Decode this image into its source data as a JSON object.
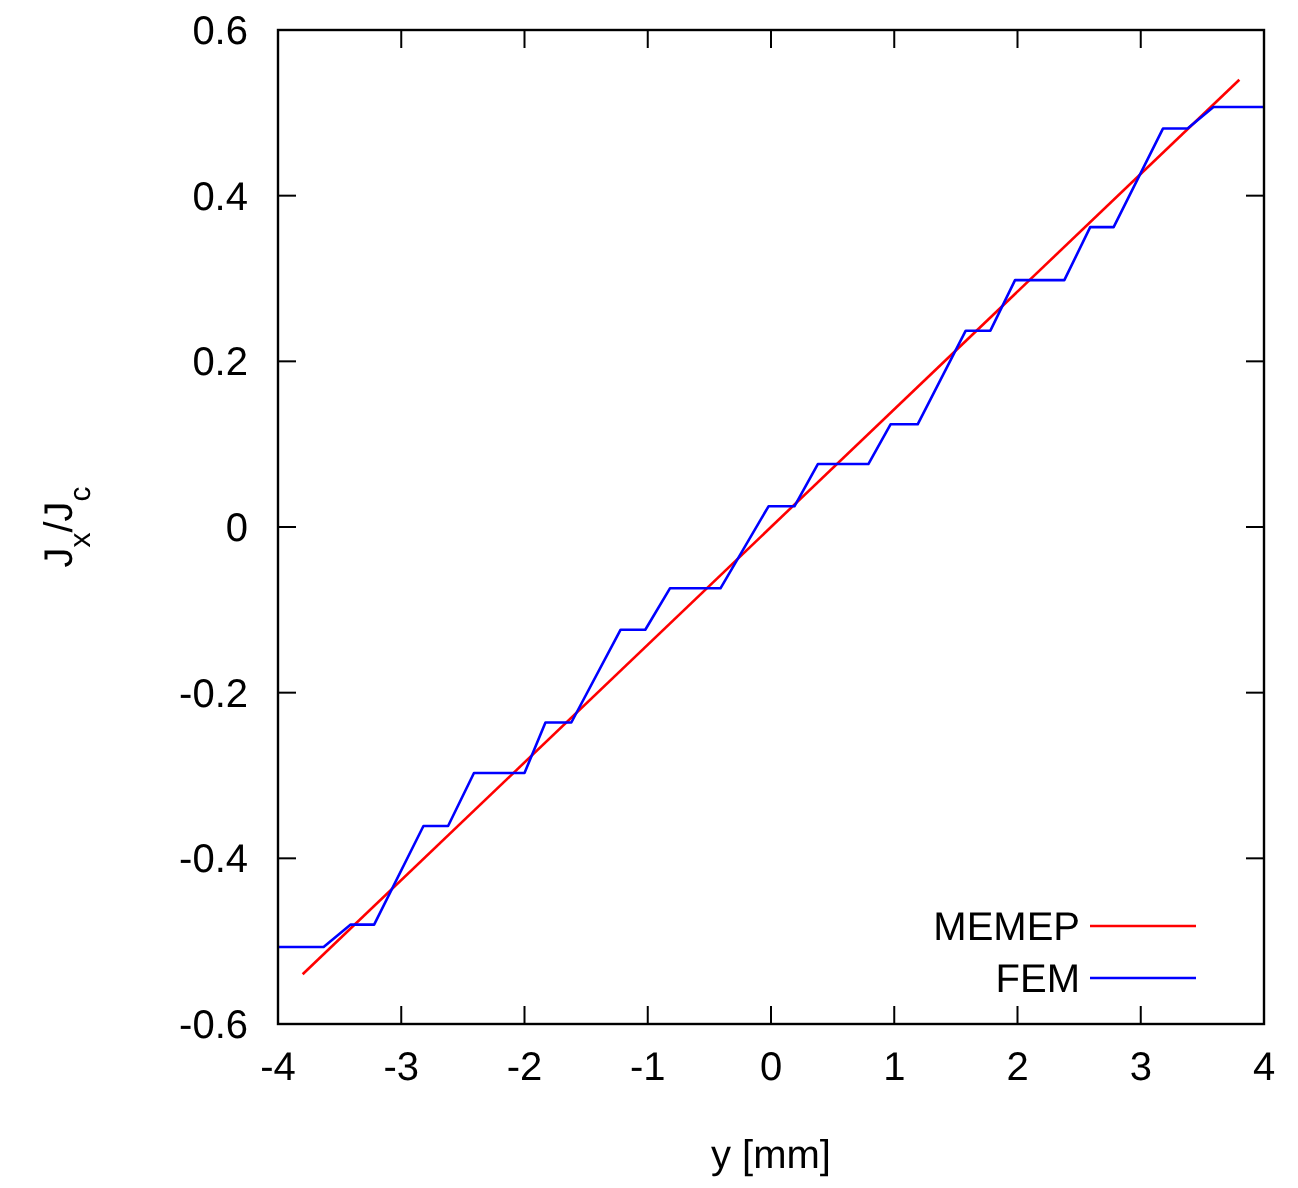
{
  "chart_data": {
    "type": "line",
    "xlabel": "y [mm]",
    "ylabel": "J$_{x}$/J$_{c}$",
    "xlim": [
      -4,
      4
    ],
    "ylim": [
      -0.6,
      0.6
    ],
    "xticks": [
      -4,
      -3,
      -2,
      -1,
      0,
      1,
      2,
      3,
      4
    ],
    "yticks": [
      -0.6,
      -0.4,
      -0.2,
      0,
      0.2,
      0.4,
      0.6
    ],
    "grid": false,
    "legend": "bottom right",
    "marker": "none",
    "line_style": "solid",
    "series": [
      {
        "name": "MEMEP",
        "color": "#ff0000",
        "x": [
          -3.8,
          0,
          3.8
        ],
        "values": [
          -0.54,
          0,
          0.54
        ]
      },
      {
        "name": "FEM",
        "color": "#0000ff",
        "x": [
          -4,
          -3.63,
          -3.41,
          -3.22,
          -2.82,
          -2.62,
          -2.41,
          -2.0,
          -1.83,
          -1.62,
          -1.22,
          -1.02,
          -0.82,
          -0.41,
          -0.02,
          0.19,
          0.38,
          0.79,
          0.97,
          1.19,
          1.58,
          1.78,
          1.98,
          2.38,
          2.59,
          2.78,
          3.18,
          3.38,
          3.59,
          4
        ],
        "values": [
          -0.507,
          -0.507,
          -0.48,
          -0.48,
          -0.361,
          -0.361,
          -0.297,
          -0.297,
          -0.236,
          -0.236,
          -0.124,
          -0.124,
          -0.074,
          -0.074,
          0.025,
          0.025,
          0.076,
          0.076,
          0.124,
          0.124,
          0.237,
          0.237,
          0.298,
          0.298,
          0.362,
          0.362,
          0.481,
          0.481,
          0.507,
          0.507
        ]
      }
    ]
  }
}
